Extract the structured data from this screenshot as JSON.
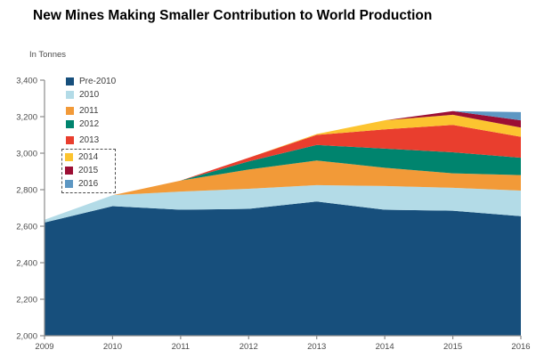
{
  "title": "New Mines Making Smaller Contribution to World Production",
  "chart_data": {
    "type": "area",
    "stacked": true,
    "title": "New Mines Making Smaller Contribution to World Production",
    "ylabel": "In Tonnes",
    "xlabel": "",
    "grid": false,
    "legend_position": "top-left-inside",
    "x": [
      2009,
      2010,
      2011,
      2012,
      2013,
      2014,
      2015,
      2016
    ],
    "x_tick_labels": [
      "2009",
      "2010",
      "2011",
      "2012",
      "2013",
      "2014",
      "2015",
      "2016"
    ],
    "ylim": [
      2000,
      3400
    ],
    "y_tick_step": 200,
    "y_tick_labels_top_down": [
      "3,400",
      "3,200",
      "3,000",
      "2,800",
      "2,600",
      "2,400",
      "2,200",
      "2,000"
    ],
    "series": [
      {
        "name": "Pre-2010",
        "color": "#174f7c",
        "boxed": false,
        "values": [
          2620,
          2710,
          2690,
          2695,
          2735,
          2690,
          2685,
          2655
        ]
      },
      {
        "name": "2010",
        "color": "#b3dbe7",
        "boxed": false,
        "values": [
          15,
          60,
          100,
          110,
          90,
          130,
          125,
          140
        ]
      },
      {
        "name": "2011",
        "color": "#f29a38",
        "boxed": false,
        "values": [
          0,
          0,
          60,
          105,
          135,
          100,
          80,
          85
        ]
      },
      {
        "name": "2012",
        "color": "#00846e",
        "boxed": false,
        "values": [
          0,
          0,
          0,
          45,
          85,
          105,
          115,
          95
        ]
      },
      {
        "name": "2013",
        "color": "#e93e2e",
        "boxed": false,
        "values": [
          0,
          0,
          0,
          20,
          55,
          105,
          150,
          115
        ]
      },
      {
        "name": "2014",
        "color": "#fcc430",
        "boxed": true,
        "values": [
          0,
          0,
          0,
          0,
          5,
          50,
          55,
          50
        ]
      },
      {
        "name": "2015",
        "color": "#9c0e34",
        "boxed": true,
        "values": [
          0,
          0,
          0,
          0,
          0,
          0,
          20,
          40
        ]
      },
      {
        "name": "2016",
        "color": "#5d97c3",
        "boxed": true,
        "values": [
          0,
          0,
          0,
          0,
          0,
          0,
          0,
          45
        ]
      }
    ],
    "stacked_totals": [
      2635,
      2770,
      2850,
      2975,
      3105,
      3180,
      3230,
      3225
    ],
    "axis_color": "#8c8c8c",
    "tick_label_color": "#4c4c4c"
  }
}
